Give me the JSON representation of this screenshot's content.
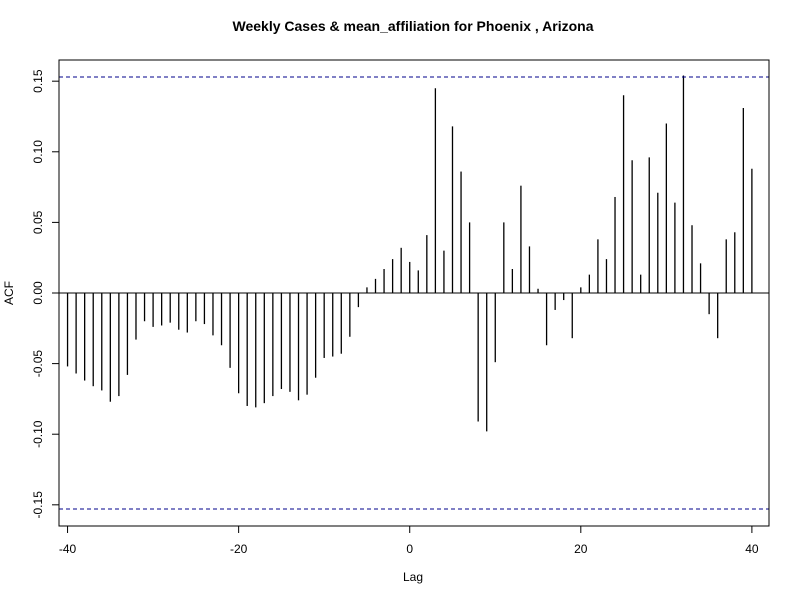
{
  "chart_data": {
    "type": "bar",
    "title": "Weekly Cases & mean_affiliation for Phoenix , Arizona",
    "xlabel": "Lag",
    "ylabel": "ACF",
    "xlim": [
      -41,
      42
    ],
    "ylim": [
      -0.165,
      0.165
    ],
    "xticks": [
      -40,
      -20,
      0,
      20,
      40
    ],
    "yticks": [
      -0.15,
      -0.1,
      -0.05,
      0.0,
      0.05,
      0.1,
      0.15
    ],
    "ytick_labels": [
      "-0.15",
      "-0.10",
      "-0.05",
      "0.00",
      "0.05",
      "0.10",
      "0.15"
    ],
    "xtick_labels": [
      "-40",
      "-20",
      "0",
      "20",
      "40"
    ],
    "confidence_band": 0.153,
    "band_color": "#00008b",
    "bar_color": "#000000",
    "lags": [
      -40,
      -39,
      -38,
      -37,
      -36,
      -35,
      -34,
      -33,
      -32,
      -31,
      -30,
      -29,
      -28,
      -27,
      -26,
      -25,
      -24,
      -23,
      -22,
      -21,
      -20,
      -19,
      -18,
      -17,
      -16,
      -15,
      -14,
      -13,
      -12,
      -11,
      -10,
      -9,
      -8,
      -7,
      -6,
      -5,
      -4,
      -3,
      -2,
      -1,
      0,
      1,
      2,
      3,
      4,
      5,
      6,
      7,
      8,
      9,
      10,
      11,
      12,
      13,
      14,
      15,
      16,
      17,
      18,
      19,
      20,
      21,
      22,
      23,
      24,
      25,
      26,
      27,
      28,
      29,
      30,
      31,
      32,
      33,
      34,
      35,
      36,
      37,
      38,
      39,
      40
    ],
    "values": [
      -0.052,
      -0.057,
      -0.062,
      -0.066,
      -0.069,
      -0.077,
      -0.073,
      -0.058,
      -0.033,
      -0.02,
      -0.024,
      -0.023,
      -0.021,
      -0.026,
      -0.028,
      -0.02,
      -0.022,
      -0.03,
      -0.037,
      -0.053,
      -0.071,
      -0.08,
      -0.081,
      -0.078,
      -0.073,
      -0.068,
      -0.07,
      -0.076,
      -0.072,
      -0.06,
      -0.046,
      -0.045,
      -0.043,
      -0.031,
      -0.01,
      0.004,
      0.01,
      0.017,
      0.024,
      0.032,
      0.022,
      0.016,
      0.041,
      0.145,
      0.03,
      0.118,
      0.086,
      0.05,
      -0.091,
      -0.098,
      -0.049,
      0.05,
      0.017,
      0.076,
      0.033,
      0.003,
      -0.037,
      -0.012,
      -0.005,
      -0.032,
      0.004,
      0.013,
      0.038,
      0.024,
      0.068,
      0.14,
      0.094,
      0.013,
      0.096,
      0.071,
      0.12,
      0.064,
      0.154,
      0.048,
      0.021,
      -0.015,
      -0.032,
      0.038,
      0.043,
      0.131,
      0.088
    ]
  }
}
